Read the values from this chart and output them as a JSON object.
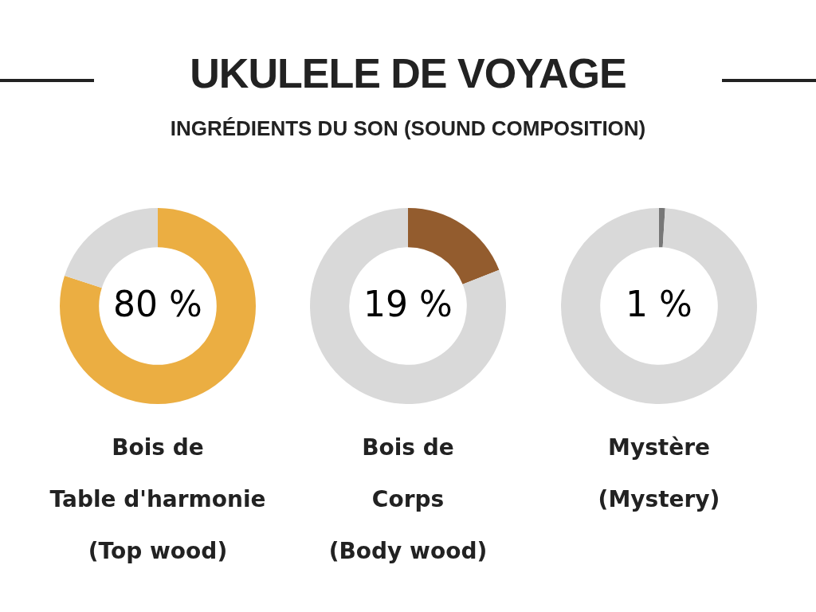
{
  "chart_data": [
    {
      "type": "other",
      "title": "UKULELE DE VOYAGE",
      "subtitle": "INGRÉDIENTS DU SON (SOUND COMPOSITION)"
    },
    {
      "type": "donut",
      "title": "Bois de\nTable d'harmonie\n(Top wood)",
      "categories": [
        null,
        null
      ],
      "values": [
        80,
        20
      ],
      "colors": [
        "#ebae42",
        "#d9d9d9"
      ],
      "value_labels": [
        "80 %",
        null
      ]
    },
    {
      "type": "donut",
      "title": "Bois de\nCorps\n(Body wood)",
      "categories": [
        null,
        null
      ],
      "values": [
        19,
        81
      ],
      "colors": [
        "#935c2e",
        "#d9d9d9"
      ],
      "value_labels": [
        "19 %",
        null
      ]
    },
    {
      "type": "donut",
      "title": "Mystère\n(Mystery)",
      "categories": [
        null,
        null
      ],
      "values": [
        1,
        99
      ],
      "colors": [
        "#777777",
        "#d9d9d9"
      ],
      "value_labels": [
        "1 %",
        null
      ]
    }
  ]
}
